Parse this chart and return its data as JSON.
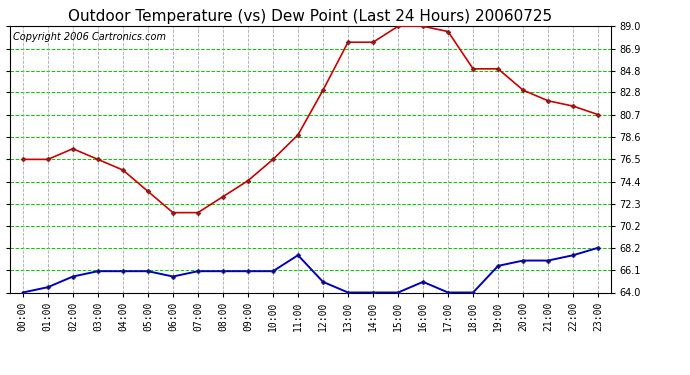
{
  "title": "Outdoor Temperature (vs) Dew Point (Last 24 Hours) 20060725",
  "copyright_text": "Copyright 2006 Cartronics.com",
  "hours": [
    "00:00",
    "01:00",
    "02:00",
    "03:00",
    "04:00",
    "05:00",
    "06:00",
    "07:00",
    "08:00",
    "09:00",
    "10:00",
    "11:00",
    "12:00",
    "13:00",
    "14:00",
    "15:00",
    "16:00",
    "17:00",
    "18:00",
    "19:00",
    "20:00",
    "21:00",
    "22:00",
    "23:00"
  ],
  "temp_data": [
    76.5,
    76.5,
    77.5,
    76.5,
    75.5,
    73.5,
    71.5,
    71.5,
    73.0,
    74.5,
    76.5,
    78.8,
    83.0,
    87.5,
    87.5,
    89.0,
    89.0,
    88.5,
    85.0,
    85.0,
    83.0,
    82.0,
    81.5,
    80.7
  ],
  "dew_data": [
    64.0,
    64.5,
    65.5,
    66.0,
    66.0,
    66.0,
    65.5,
    66.0,
    66.0,
    66.0,
    66.0,
    67.5,
    65.0,
    64.0,
    64.0,
    64.0,
    65.0,
    64.0,
    64.0,
    66.5,
    67.0,
    67.0,
    67.5,
    68.2
  ],
  "temp_color": "#cc0000",
  "dew_color": "#0000bb",
  "bg_color": "#ffffff",
  "plot_bg_color": "#ffffff",
  "grid_h_color": "#00cc00",
  "grid_v_color": "#aaaaaa",
  "ylim_min": 64.0,
  "ylim_max": 89.0,
  "yticks": [
    64.0,
    66.1,
    68.2,
    70.2,
    72.3,
    74.4,
    76.5,
    78.6,
    80.7,
    82.8,
    84.8,
    86.9,
    89.0
  ],
  "title_fontsize": 11,
  "copyright_fontsize": 7,
  "tick_fontsize": 7
}
